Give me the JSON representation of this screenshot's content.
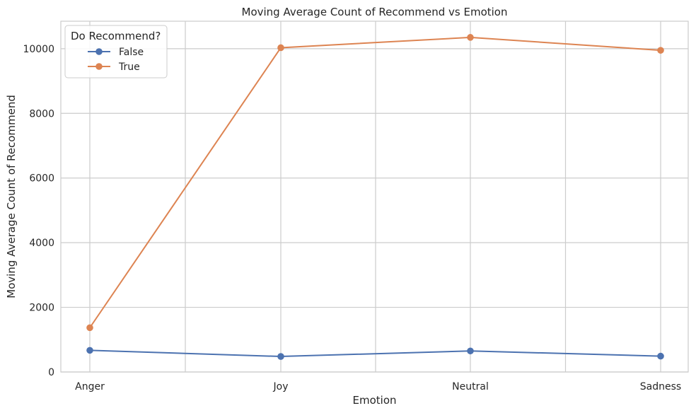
{
  "chart_data": {
    "type": "line",
    "title": "Moving Average Count of Recommend vs Emotion",
    "xlabel": "Emotion",
    "ylabel": "Moving Average Count of Recommend",
    "categories": [
      "Anger",
      "Joy",
      "Neutral",
      "Sadness"
    ],
    "ylim": [
      0,
      10850
    ],
    "yticks": [
      0,
      2000,
      4000,
      6000,
      8000,
      10000
    ],
    "grid": true,
    "legend": {
      "title": "Do Recommend?",
      "placement": "top-left"
    },
    "series": [
      {
        "name": "False",
        "color": "#4c72b0",
        "values": [
          670,
          480,
          650,
          490
        ]
      },
      {
        "name": "True",
        "color": "#dd8452",
        "values": [
          1370,
          10030,
          10350,
          9950
        ]
      }
    ]
  }
}
